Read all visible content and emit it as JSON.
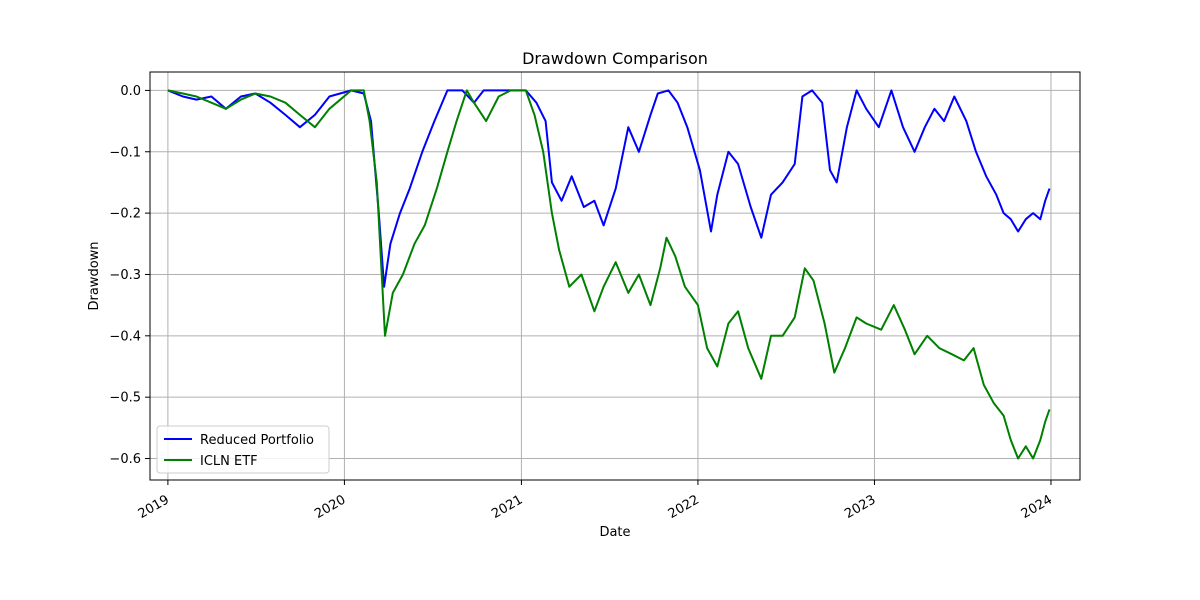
{
  "chart_data": {
    "type": "line",
    "title": "Drawdown Comparison",
    "xlabel": "Date",
    "ylabel": "Drawdown",
    "xlim": [
      "2018-11-25",
      "2024-03-01"
    ],
    "ylim": [
      -0.635,
      0.03
    ],
    "x_ticks": [
      "2019-01-01",
      "2020-01-01",
      "2021-01-01",
      "2022-01-01",
      "2023-01-01",
      "2024-01-01"
    ],
    "x_tick_labels": [
      "2019",
      "2020",
      "2021",
      "2022",
      "2023",
      "2024"
    ],
    "y_ticks": [
      0.0,
      -0.1,
      -0.2,
      -0.3,
      -0.4,
      -0.5,
      -0.6
    ],
    "y_tick_labels": [
      "0.0",
      "−0.1",
      "−0.2",
      "−0.3",
      "−0.4",
      "−0.5",
      "−0.6"
    ],
    "grid": true,
    "legend_position": "lower-left",
    "series": [
      {
        "name": "Reduced Portfolio",
        "color": "#0000ff",
        "points": [
          [
            "2019-01-01",
            0.0
          ],
          [
            "2019-02-01",
            -0.01
          ],
          [
            "2019-03-01",
            -0.015
          ],
          [
            "2019-04-01",
            -0.01
          ],
          [
            "2019-05-01",
            -0.03
          ],
          [
            "2019-06-01",
            -0.01
          ],
          [
            "2019-07-01",
            -0.005
          ],
          [
            "2019-08-01",
            -0.02
          ],
          [
            "2019-09-01",
            -0.04
          ],
          [
            "2019-10-01",
            -0.06
          ],
          [
            "2019-11-01",
            -0.04
          ],
          [
            "2019-12-01",
            -0.01
          ],
          [
            "2020-01-15",
            0.0
          ],
          [
            "2020-02-10",
            -0.005
          ],
          [
            "2020-02-25",
            -0.05
          ],
          [
            "2020-03-12",
            -0.2
          ],
          [
            "2020-03-23",
            -0.32
          ],
          [
            "2020-04-05",
            -0.25
          ],
          [
            "2020-04-25",
            -0.2
          ],
          [
            "2020-05-15",
            -0.16
          ],
          [
            "2020-06-10",
            -0.1
          ],
          [
            "2020-07-05",
            -0.05
          ],
          [
            "2020-08-01",
            0.0
          ],
          [
            "2020-09-01",
            0.0
          ],
          [
            "2020-09-25",
            -0.02
          ],
          [
            "2020-10-15",
            0.0
          ],
          [
            "2020-11-15",
            0.0
          ],
          [
            "2020-12-15",
            0.0
          ],
          [
            "2021-01-10",
            0.0
          ],
          [
            "2021-02-01",
            -0.02
          ],
          [
            "2021-02-20",
            -0.05
          ],
          [
            "2021-03-05",
            -0.15
          ],
          [
            "2021-03-25",
            -0.18
          ],
          [
            "2021-04-15",
            -0.14
          ],
          [
            "2021-05-10",
            -0.19
          ],
          [
            "2021-06-01",
            -0.18
          ],
          [
            "2021-06-20",
            -0.22
          ],
          [
            "2021-07-15",
            -0.16
          ],
          [
            "2021-08-10",
            -0.06
          ],
          [
            "2021-09-01",
            -0.1
          ],
          [
            "2021-09-25",
            -0.04
          ],
          [
            "2021-10-10",
            -0.005
          ],
          [
            "2021-11-01",
            0.0
          ],
          [
            "2021-11-20",
            -0.02
          ],
          [
            "2021-12-10",
            -0.06
          ],
          [
            "2022-01-05",
            -0.13
          ],
          [
            "2022-01-28",
            -0.23
          ],
          [
            "2022-02-10",
            -0.17
          ],
          [
            "2022-03-05",
            -0.1
          ],
          [
            "2022-03-25",
            -0.12
          ],
          [
            "2022-04-20",
            -0.19
          ],
          [
            "2022-05-12",
            -0.24
          ],
          [
            "2022-06-01",
            -0.17
          ],
          [
            "2022-06-25",
            -0.15
          ],
          [
            "2022-07-20",
            -0.12
          ],
          [
            "2022-08-05",
            -0.01
          ],
          [
            "2022-08-25",
            0.0
          ],
          [
            "2022-09-15",
            -0.02
          ],
          [
            "2022-10-01",
            -0.13
          ],
          [
            "2022-10-15",
            -0.15
          ],
          [
            "2022-11-05",
            -0.06
          ],
          [
            "2022-11-25",
            0.0
          ],
          [
            "2022-12-15",
            -0.03
          ],
          [
            "2023-01-10",
            -0.06
          ],
          [
            "2023-02-05",
            0.0
          ],
          [
            "2023-03-01",
            -0.06
          ],
          [
            "2023-03-25",
            -0.1
          ],
          [
            "2023-04-15",
            -0.06
          ],
          [
            "2023-05-05",
            -0.03
          ],
          [
            "2023-05-25",
            -0.05
          ],
          [
            "2023-06-15",
            -0.01
          ],
          [
            "2023-07-10",
            -0.05
          ],
          [
            "2023-07-30",
            -0.1
          ],
          [
            "2023-08-20",
            -0.14
          ],
          [
            "2023-09-10",
            -0.17
          ],
          [
            "2023-09-25",
            -0.2
          ],
          [
            "2023-10-10",
            -0.21
          ],
          [
            "2023-10-25",
            -0.23
          ],
          [
            "2023-11-10",
            -0.21
          ],
          [
            "2023-11-25",
            -0.2
          ],
          [
            "2023-12-10",
            -0.21
          ],
          [
            "2023-12-20",
            -0.18
          ],
          [
            "2023-12-29",
            -0.16
          ]
        ]
      },
      {
        "name": "ICLN ETF",
        "color": "#008000",
        "points": [
          [
            "2019-01-01",
            0.0
          ],
          [
            "2019-02-01",
            -0.005
          ],
          [
            "2019-03-01",
            -0.01
          ],
          [
            "2019-04-01",
            -0.02
          ],
          [
            "2019-05-01",
            -0.03
          ],
          [
            "2019-06-01",
            -0.015
          ],
          [
            "2019-07-01",
            -0.005
          ],
          [
            "2019-08-01",
            -0.01
          ],
          [
            "2019-09-01",
            -0.02
          ],
          [
            "2019-10-01",
            -0.04
          ],
          [
            "2019-11-01",
            -0.06
          ],
          [
            "2019-12-01",
            -0.03
          ],
          [
            "2020-01-15",
            0.0
          ],
          [
            "2020-02-10",
            0.0
          ],
          [
            "2020-02-22",
            -0.05
          ],
          [
            "2020-03-08",
            -0.15
          ],
          [
            "2020-03-25",
            -0.4
          ],
          [
            "2020-04-10",
            -0.33
          ],
          [
            "2020-05-01",
            -0.3
          ],
          [
            "2020-05-25",
            -0.25
          ],
          [
            "2020-06-15",
            -0.22
          ],
          [
            "2020-07-10",
            -0.16
          ],
          [
            "2020-08-01",
            -0.1
          ],
          [
            "2020-08-20",
            -0.05
          ],
          [
            "2020-09-10",
            0.0
          ],
          [
            "2020-09-25",
            -0.02
          ],
          [
            "2020-10-20",
            -0.05
          ],
          [
            "2020-11-15",
            -0.01
          ],
          [
            "2020-12-10",
            0.0
          ],
          [
            "2021-01-10",
            0.0
          ],
          [
            "2021-01-28",
            -0.04
          ],
          [
            "2021-02-15",
            -0.1
          ],
          [
            "2021-03-05",
            -0.2
          ],
          [
            "2021-03-20",
            -0.26
          ],
          [
            "2021-04-10",
            -0.32
          ],
          [
            "2021-05-05",
            -0.3
          ],
          [
            "2021-06-01",
            -0.36
          ],
          [
            "2021-06-20",
            -0.32
          ],
          [
            "2021-07-15",
            -0.28
          ],
          [
            "2021-08-10",
            -0.33
          ],
          [
            "2021-09-01",
            -0.3
          ],
          [
            "2021-09-25",
            -0.35
          ],
          [
            "2021-10-15",
            -0.29
          ],
          [
            "2021-10-28",
            -0.24
          ],
          [
            "2021-11-15",
            -0.27
          ],
          [
            "2021-12-05",
            -0.32
          ],
          [
            "2022-01-01",
            -0.35
          ],
          [
            "2022-01-20",
            -0.42
          ],
          [
            "2022-02-10",
            -0.45
          ],
          [
            "2022-03-05",
            -0.38
          ],
          [
            "2022-03-25",
            -0.36
          ],
          [
            "2022-04-15",
            -0.42
          ],
          [
            "2022-05-12",
            -0.47
          ],
          [
            "2022-06-01",
            -0.4
          ],
          [
            "2022-06-25",
            -0.4
          ],
          [
            "2022-07-20",
            -0.37
          ],
          [
            "2022-08-10",
            -0.29
          ],
          [
            "2022-08-28",
            -0.31
          ],
          [
            "2022-09-20",
            -0.38
          ],
          [
            "2022-10-10",
            -0.46
          ],
          [
            "2022-11-01",
            -0.42
          ],
          [
            "2022-11-25",
            -0.37
          ],
          [
            "2022-12-15",
            -0.38
          ],
          [
            "2023-01-15",
            -0.39
          ],
          [
            "2023-02-10",
            -0.35
          ],
          [
            "2023-03-05",
            -0.39
          ],
          [
            "2023-03-25",
            -0.43
          ],
          [
            "2023-04-20",
            -0.4
          ],
          [
            "2023-05-15",
            -0.42
          ],
          [
            "2023-06-10",
            -0.43
          ],
          [
            "2023-07-05",
            -0.44
          ],
          [
            "2023-07-25",
            -0.42
          ],
          [
            "2023-08-15",
            -0.48
          ],
          [
            "2023-09-05",
            -0.51
          ],
          [
            "2023-09-25",
            -0.53
          ],
          [
            "2023-10-10",
            -0.57
          ],
          [
            "2023-10-25",
            -0.6
          ],
          [
            "2023-11-10",
            -0.58
          ],
          [
            "2023-11-25",
            -0.6
          ],
          [
            "2023-12-10",
            -0.57
          ],
          [
            "2023-12-20",
            -0.54
          ],
          [
            "2023-12-29",
            -0.52
          ]
        ]
      }
    ]
  }
}
